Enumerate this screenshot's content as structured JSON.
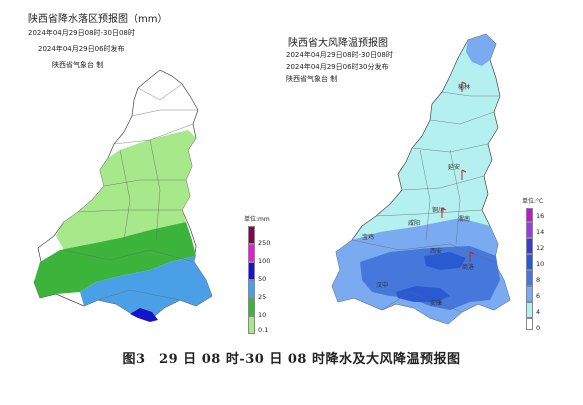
{
  "left_map": {
    "title": "陕西省降水落区预报图（mm）",
    "valid_time": "2024年04月29日08时-30日08时",
    "issue_time": "2024年04月29日06时发布",
    "issuer": "陕西省气象台 制",
    "legend": {
      "unit": "单位:mm",
      "items": [
        {
          "label": "250",
          "color": "#7a0a4a"
        },
        {
          "label": "100",
          "color": "#e01fd0"
        },
        {
          "label": "50",
          "color": "#1414c8"
        },
        {
          "label": "25",
          "color": "#4aa0e6"
        },
        {
          "label": "10",
          "color": "#3cb43c"
        },
        {
          "label": "0.1",
          "color": "#a6e88a"
        }
      ]
    }
  },
  "right_map": {
    "title": "陕西省大风降温预报图",
    "valid_time": "2024年04月29日08时-30日08时",
    "issue_time": "2024年04月29日06时30分发布",
    "issuer": "陕西省气象台 制",
    "cities": [
      "榆林",
      "延安",
      "铜川",
      "咸阳",
      "渭南",
      "宝鸡",
      "西安",
      "汉中",
      "商洛",
      "安康"
    ],
    "legend": {
      "unit": "单位:°C",
      "items": [
        {
          "label": "16",
          "color": "#b41ec8"
        },
        {
          "label": "14",
          "color": "#9640dc"
        },
        {
          "label": "12",
          "color": "#3c3cc8"
        },
        {
          "label": "10",
          "color": "#2a5ad2"
        },
        {
          "label": "8",
          "color": "#4678dc"
        },
        {
          "label": "6",
          "color": "#7aaaf0"
        },
        {
          "label": "4",
          "color": "#b4f0f0"
        },
        {
          "label": "0",
          "color": "#ffffff"
        }
      ]
    }
  },
  "caption": "图3　29 日 08 时-30 日 08 时降水及大风降温预报图"
}
